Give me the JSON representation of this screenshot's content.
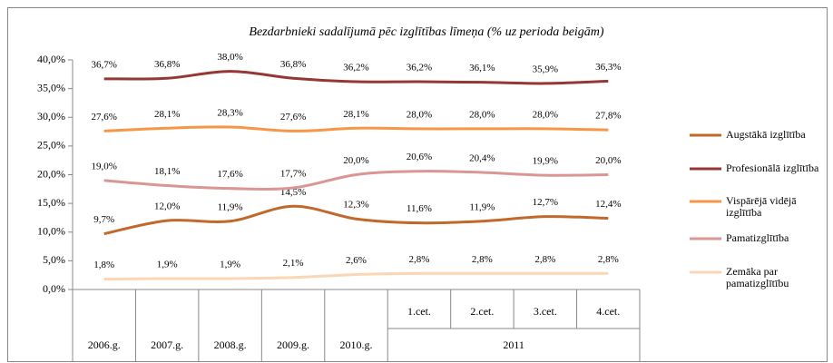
{
  "chart_data": {
    "type": "line",
    "title": "Bezdarbnieki sadalījumā pēc izglītības līmeņa (% uz perioda beigām)",
    "categories": [
      "2006.g.",
      "2007.g.",
      "2008.g.",
      "2009.g.",
      "2010.g.",
      "1.cet.",
      "2.cet.",
      "3.cet.",
      "4.cet."
    ],
    "x_groups": [
      {
        "label": "2011",
        "span": 4
      }
    ],
    "ylim": [
      0,
      40
    ],
    "yticks": [
      {
        "value": 0,
        "label": "0,0%"
      },
      {
        "value": 5,
        "label": "5,0%"
      },
      {
        "value": 10,
        "label": "10,0%"
      },
      {
        "value": 15,
        "label": "15,0%"
      },
      {
        "value": 20,
        "label": "20,0%"
      },
      {
        "value": 25,
        "label": "25,0%"
      },
      {
        "value": 30,
        "label": "30,0%"
      },
      {
        "value": 35,
        "label": "35,0%"
      },
      {
        "value": 40,
        "label": "40,0%"
      }
    ],
    "legend": "right",
    "series": [
      {
        "name": "Augstākā izglītība",
        "color": "#c0692a",
        "values": [
          9.7,
          12.0,
          11.9,
          14.5,
          12.3,
          11.6,
          11.9,
          12.7,
          12.4
        ],
        "value_labels": [
          "9,7%",
          "12,0%",
          "11,9%",
          "14,5%",
          "12,3%",
          "11,6%",
          "11,9%",
          "12,7%",
          "12,4%"
        ]
      },
      {
        "name": "Profesionālā izglītība",
        "color": "#953735",
        "values": [
          36.7,
          36.8,
          38.0,
          36.8,
          36.2,
          36.2,
          36.1,
          35.9,
          36.3
        ],
        "value_labels": [
          "36,7%",
          "36,8%",
          "38,0%",
          "36,8%",
          "36,2%",
          "36,2%",
          "36,1%",
          "35,9%",
          "36,3%"
        ]
      },
      {
        "name": "Vispārējā vidējā izglītība",
        "color": "#f79646",
        "values": [
          27.6,
          28.1,
          28.3,
          27.6,
          28.1,
          28.0,
          28.0,
          28.0,
          27.8
        ],
        "value_labels": [
          "27,6%",
          "28,1%",
          "28,3%",
          "27,6%",
          "28,1%",
          "28,0%",
          "28,0%",
          "28,0%",
          "27,8%"
        ]
      },
      {
        "name": "Pamatizglītība",
        "color": "#d99694",
        "values": [
          19.0,
          18.1,
          17.6,
          17.7,
          20.0,
          20.6,
          20.4,
          19.9,
          20.0
        ],
        "value_labels": [
          "19,0%",
          "18,1%",
          "17,6%",
          "17,7%",
          "20,0%",
          "20,6%",
          "20,4%",
          "19,9%",
          "20,0%"
        ]
      },
      {
        "name": "Zemāka par pamatizglītību",
        "color": "#fcd5b5",
        "values": [
          1.8,
          1.9,
          1.9,
          2.1,
          2.6,
          2.8,
          2.8,
          2.8,
          2.8
        ],
        "value_labels": [
          "1,8%",
          "1,9%",
          "1,9%",
          "2,1%",
          "2,6%",
          "2,8%",
          "2,8%",
          "2,8%",
          "2,8%"
        ]
      }
    ]
  }
}
